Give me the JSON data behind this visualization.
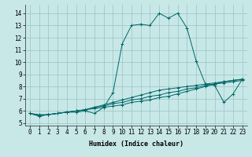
{
  "title": "",
  "xlabel": "Humidex (Indice chaleur)",
  "ylabel": "",
  "xlim": [
    -0.5,
    23.5
  ],
  "ylim": [
    4.8,
    14.7
  ],
  "yticks": [
    5,
    6,
    7,
    8,
    9,
    10,
    11,
    12,
    13,
    14
  ],
  "xticks": [
    0,
    1,
    2,
    3,
    4,
    5,
    6,
    7,
    8,
    9,
    10,
    11,
    12,
    13,
    14,
    15,
    16,
    17,
    18,
    19,
    20,
    21,
    22,
    23
  ],
  "background_color": "#c8e8e8",
  "grid_color": "#a0c8c8",
  "line_color": "#006666",
  "lines": [
    [
      5.8,
      5.6,
      5.7,
      5.8,
      5.9,
      5.9,
      6.0,
      5.8,
      6.3,
      7.5,
      11.5,
      13.0,
      13.1,
      13.0,
      14.0,
      13.6,
      14.0,
      12.8,
      10.1,
      8.2,
      8.1,
      6.7,
      7.4,
      8.6
    ],
    [
      5.8,
      5.6,
      5.7,
      5.8,
      5.9,
      6.0,
      6.1,
      6.3,
      6.5,
      6.7,
      6.9,
      7.1,
      7.3,
      7.5,
      7.7,
      7.8,
      7.9,
      8.0,
      8.1,
      8.2,
      8.3,
      8.4,
      8.5,
      8.6
    ],
    [
      5.8,
      5.6,
      5.7,
      5.8,
      5.9,
      6.0,
      6.1,
      6.3,
      6.4,
      6.6,
      6.7,
      6.9,
      7.0,
      7.2,
      7.3,
      7.5,
      7.6,
      7.8,
      7.9,
      8.1,
      8.2,
      8.4,
      8.5,
      8.6
    ],
    [
      5.8,
      5.7,
      5.7,
      5.8,
      5.9,
      6.0,
      6.1,
      6.2,
      6.3,
      6.4,
      6.5,
      6.7,
      6.8,
      6.9,
      7.1,
      7.2,
      7.4,
      7.6,
      7.8,
      8.0,
      8.2,
      8.3,
      8.4,
      8.5
    ]
  ],
  "marker": "+",
  "tick_fontsize": 5.5,
  "xlabel_fontsize": 6.0
}
